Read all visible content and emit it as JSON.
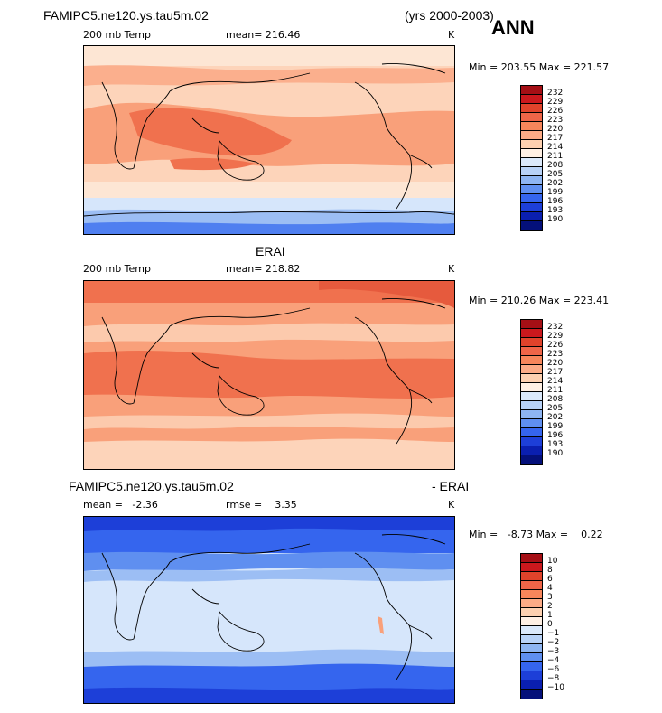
{
  "header": {
    "case_name": "FAMIPC5.ne120.ys.tau5m.02",
    "years": "(yrs 2000-2003)",
    "season": "ANN"
  },
  "panels": [
    {
      "title": "",
      "left_label": "200 mb Temp",
      "center_label": "mean= 216.46",
      "units": "K",
      "minmax": "Min = 203.55 Max = 221.57",
      "levels": [
        "232",
        "229",
        "226",
        "223",
        "220",
        "217",
        "214",
        "211",
        "208",
        "205",
        "202",
        "199",
        "196",
        "193",
        "190"
      ],
      "colors": [
        "#a50f15",
        "#cb181d",
        "#e0432b",
        "#ef6548",
        "#f7865b",
        "#fcab86",
        "#fdd0b0",
        "#fff0e4",
        "#dbe9fb",
        "#b8d2f7",
        "#8eb5f2",
        "#5f8ff0",
        "#3565ee",
        "#1d3fd8",
        "#0a1fb0",
        "#04107a"
      ],
      "color_key": {
        "warm_deep": "#f0714e",
        "warm_mid": "#f9a07a",
        "warm_light": "#fdd4ba",
        "cool_light": "#d6e6fb",
        "cool_mid": "#9cbef4",
        "cool_deep": "#4f7ff0"
      }
    },
    {
      "title": "ERAI",
      "left_label": "200 mb Temp",
      "center_label": "mean= 218.82",
      "units": "K",
      "minmax": "Min = 210.26 Max = 223.41",
      "levels": [
        "232",
        "229",
        "226",
        "223",
        "220",
        "217",
        "214",
        "211",
        "208",
        "205",
        "202",
        "199",
        "196",
        "193",
        "190"
      ],
      "colors": [
        "#a50f15",
        "#cb181d",
        "#e0432b",
        "#ef6548",
        "#f7865b",
        "#fcab86",
        "#fdd0b0",
        "#fff0e4",
        "#dbe9fb",
        "#b8d2f7",
        "#8eb5f2",
        "#5f8ff0",
        "#3565ee",
        "#1d3fd8",
        "#0a1fb0",
        "#04107a"
      ]
    },
    {
      "title_left": "FAMIPC5.ne120.ys.tau5m.02",
      "title_right": "- ERAI",
      "left_label": "mean =   -2.36",
      "center_label": "rmse =    3.35",
      "units": "K",
      "minmax": "Min =   -8.73 Max =    0.22",
      "levels": [
        "10",
        "8",
        "6",
        "4",
        "3",
        "2",
        "1",
        "0",
        "−1",
        "−2",
        "−3",
        "−4",
        "−6",
        "−8",
        "−10"
      ],
      "colors": [
        "#a50f15",
        "#cb181d",
        "#e0432b",
        "#ef6548",
        "#f7865b",
        "#fcab86",
        "#fdd0b0",
        "#fff0e4",
        "#dbe9fb",
        "#b8d2f7",
        "#8eb5f2",
        "#5f8ff0",
        "#3565ee",
        "#1d3fd8",
        "#0a1fb0",
        "#04107a"
      ]
    }
  ]
}
